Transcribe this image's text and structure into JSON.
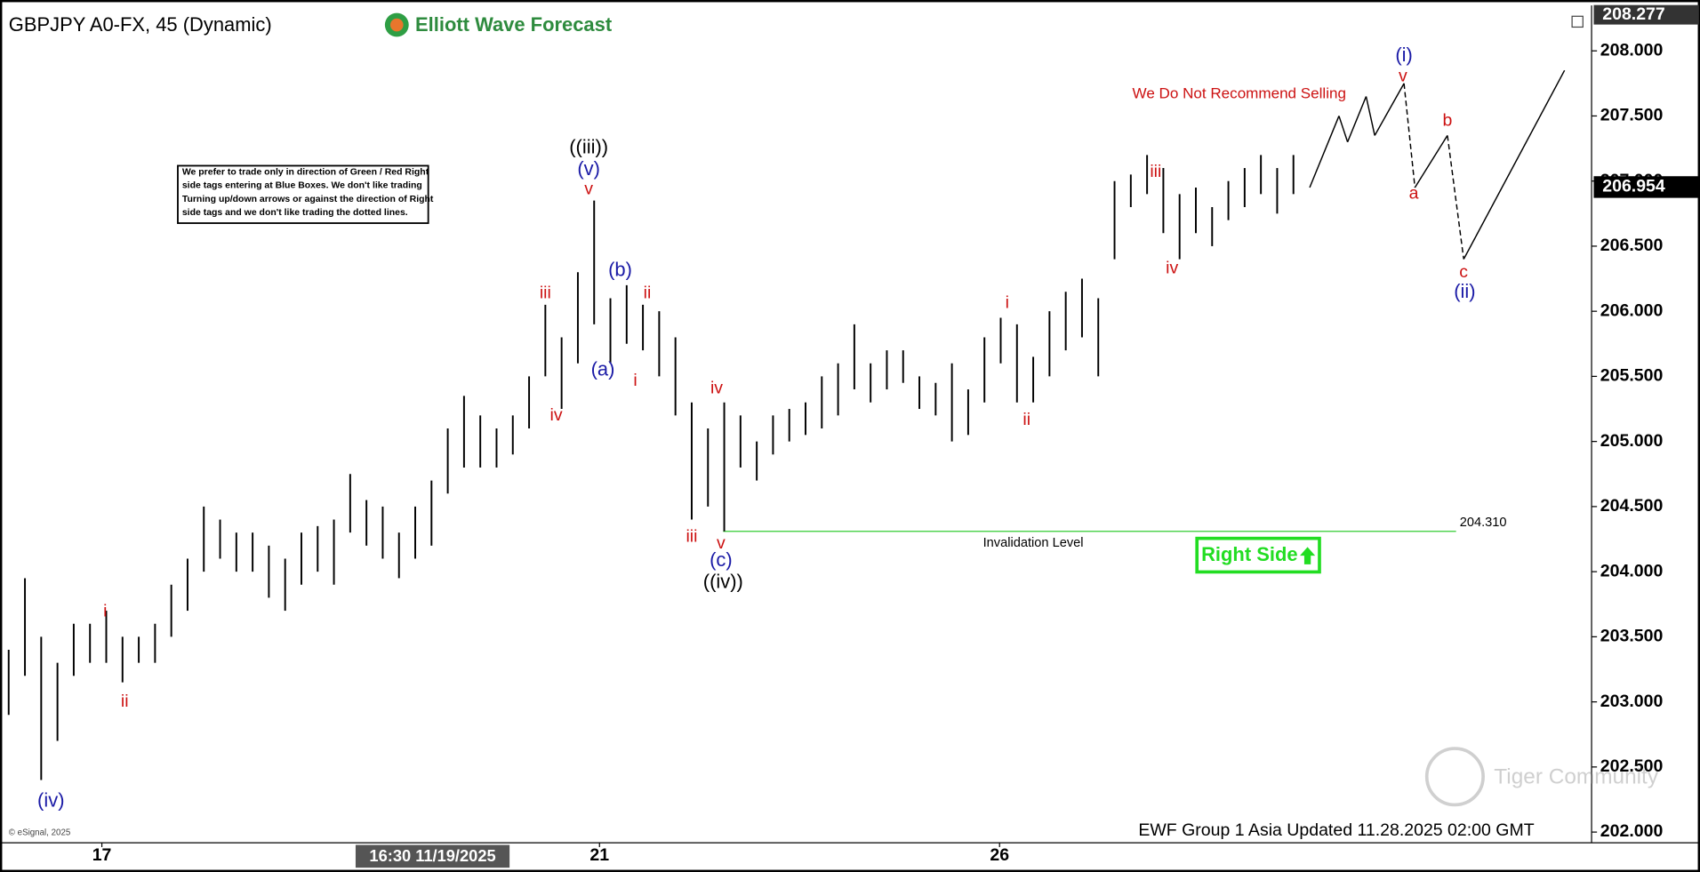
{
  "chart_data": {
    "type": "ohlc",
    "title": "GBPJPY A0-FX, 45 (Dynamic)",
    "brand": "Elliott Wave Forecast",
    "color": "#000000",
    "x": [
      0,
      1,
      2,
      3,
      4,
      5,
      6,
      7,
      8,
      9,
      10,
      11,
      12,
      13,
      14,
      15,
      16,
      17,
      18,
      19,
      20,
      21,
      22,
      23,
      24,
      25,
      26,
      27,
      28,
      29,
      30,
      31,
      32,
      33,
      34,
      35,
      36,
      37,
      38,
      39,
      40,
      41,
      42,
      43,
      44,
      45,
      46,
      47,
      48,
      49,
      50,
      51,
      52,
      53,
      54,
      55,
      56,
      57,
      58,
      59,
      60,
      61,
      62,
      63,
      64,
      65,
      66,
      67,
      68,
      69,
      70,
      71,
      72,
      73,
      74,
      75,
      76,
      77,
      78,
      79
    ],
    "high": [
      203.4,
      203.95,
      203.5,
      203.3,
      203.6,
      203.6,
      203.7,
      203.5,
      203.5,
      203.6,
      203.9,
      204.1,
      204.5,
      204.4,
      204.3,
      204.3,
      204.2,
      204.1,
      204.3,
      204.35,
      204.4,
      204.75,
      204.55,
      204.5,
      204.3,
      204.5,
      204.7,
      205.1,
      205.35,
      205.2,
      205.1,
      205.2,
      205.5,
      206.05,
      205.8,
      206.3,
      206.85,
      206.1,
      206.2,
      206.05,
      206.0,
      205.8,
      205.3,
      205.1,
      205.3,
      205.2,
      205.0,
      205.2,
      205.25,
      205.3,
      205.5,
      205.6,
      205.9,
      205.6,
      205.7,
      205.7,
      205.5,
      205.45,
      205.6,
      205.4,
      205.8,
      205.95,
      205.9,
      205.65,
      206.0,
      206.15,
      206.25,
      206.1,
      207.0,
      207.05,
      207.2,
      207.1,
      206.9,
      206.95,
      206.8,
      207.0,
      207.1,
      207.2,
      207.1,
      207.2
    ],
    "low": [
      202.9,
      203.2,
      202.4,
      202.7,
      203.2,
      203.3,
      203.3,
      203.15,
      203.3,
      203.3,
      203.5,
      203.7,
      204.0,
      204.1,
      204.0,
      204.0,
      203.8,
      203.7,
      203.9,
      204.0,
      203.9,
      204.3,
      204.2,
      204.1,
      203.95,
      204.1,
      204.2,
      204.6,
      204.8,
      204.8,
      204.8,
      204.9,
      205.1,
      205.5,
      205.25,
      205.6,
      205.9,
      205.6,
      205.75,
      205.7,
      205.5,
      205.2,
      204.4,
      204.5,
      204.31,
      204.8,
      204.7,
      204.9,
      205.0,
      205.05,
      205.1,
      205.2,
      205.4,
      205.3,
      205.4,
      205.45,
      205.25,
      205.2,
      205.0,
      205.05,
      205.3,
      205.6,
      205.3,
      205.3,
      205.5,
      205.7,
      205.8,
      205.5,
      206.4,
      206.8,
      206.9,
      206.6,
      206.4,
      206.6,
      206.5,
      206.7,
      206.8,
      206.9,
      206.75,
      206.9
    ],
    "xlim": [
      -0.5333,
      97.3333
    ],
    "ylim": [
      201.918,
      208.349
    ],
    "xticks": [
      {
        "value": 5.73,
        "label": "17"
      },
      {
        "value": 36.33,
        "label": "21"
      },
      {
        "value": 60.93,
        "label": "26"
      }
    ],
    "yticks": [
      {
        "value": 202.0,
        "label": "202.000"
      },
      {
        "value": 202.5,
        "label": "202.500"
      },
      {
        "value": 203.0,
        "label": "203.000"
      },
      {
        "value": 203.5,
        "label": "203.500"
      },
      {
        "value": 204.0,
        "label": "204.000"
      },
      {
        "value": 204.5,
        "label": "204.500"
      },
      {
        "value": 205.0,
        "label": "205.000"
      },
      {
        "value": 205.5,
        "label": "205.500"
      },
      {
        "value": 206.0,
        "label": "206.000"
      },
      {
        "value": 206.5,
        "label": "206.500"
      },
      {
        "value": 207.0,
        "label": "207.000"
      },
      {
        "value": 207.5,
        "label": "207.500"
      },
      {
        "value": 208.0,
        "label": "208.000"
      }
    ],
    "top_price": 208.277,
    "last_price": {
      "value": 206.954,
      "label": "206.954"
    },
    "crosshair_time": "16:30 11/19/2025",
    "projection": {
      "x": [
        80,
        81.8,
        82.33,
        83.47,
        84,
        85.8,
        86.47,
        88.47,
        89.47,
        95.67
      ],
      "y": [
        206.95,
        207.5,
        207.3,
        207.65,
        207.35,
        207.75,
        206.95,
        207.35,
        206.4,
        207.85
      ],
      "dashed_segments": [
        5,
        7
      ]
    },
    "invalidation": {
      "value": 204.31,
      "label": "204.310",
      "text": "Invalidation Level",
      "color": "#33cc33"
    },
    "warning": "We Do Not Recommend Selling",
    "right_side": "Right Side",
    "note": [
      "We prefer to trade only in direction of Green / Red Right",
      "side tags entering at Blue Boxes. We don't like trading",
      "Turning up/down arrows or against the direction of Right",
      "side tags and we don't like trading the dotted lines."
    ],
    "wave_labels": [
      {
        "text": "(iv)",
        "color": "#1a1aa6"
      },
      {
        "text": "i",
        "color": "#cc1111"
      },
      {
        "text": "ii",
        "color": "#cc1111"
      },
      {
        "text": "((iii))",
        "color": "#000000"
      },
      {
        "text": "(v)",
        "color": "#1a1aa6"
      },
      {
        "text": "v",
        "color": "#cc1111"
      },
      {
        "text": "iii",
        "color": "#cc1111"
      },
      {
        "text": "iv",
        "color": "#cc1111"
      },
      {
        "text": "(b)",
        "color": "#1a1aa6"
      },
      {
        "text": "(a)",
        "color": "#1a1aa6"
      },
      {
        "text": "ii",
        "color": "#cc1111"
      },
      {
        "text": "i",
        "color": "#cc1111"
      },
      {
        "text": "iv",
        "color": "#cc1111"
      },
      {
        "text": "iii",
        "color": "#cc1111"
      },
      {
        "text": "v",
        "color": "#cc1111"
      },
      {
        "text": "(c)",
        "color": "#1a1aa6"
      },
      {
        "text": "((iv))",
        "color": "#000000"
      },
      {
        "text": "i",
        "color": "#cc1111"
      },
      {
        "text": "ii",
        "color": "#cc1111"
      },
      {
        "text": "iii",
        "color": "#cc1111"
      },
      {
        "text": "iv",
        "color": "#cc1111"
      },
      {
        "text": "(i)",
        "color": "#1a1aa6"
      },
      {
        "text": "v",
        "color": "#cc1111"
      },
      {
        "text": "b",
        "color": "#cc1111"
      },
      {
        "text": "a",
        "color": "#cc1111"
      },
      {
        "text": "c",
        "color": "#cc1111"
      },
      {
        "text": "(ii)",
        "color": "#1a1aa6"
      }
    ],
    "footer": "EWF Group 1 Asia Updated 11.28.2025 02:00 GMT",
    "copyright": "© eSignal, 2025",
    "watermark": "Tiger Community"
  }
}
